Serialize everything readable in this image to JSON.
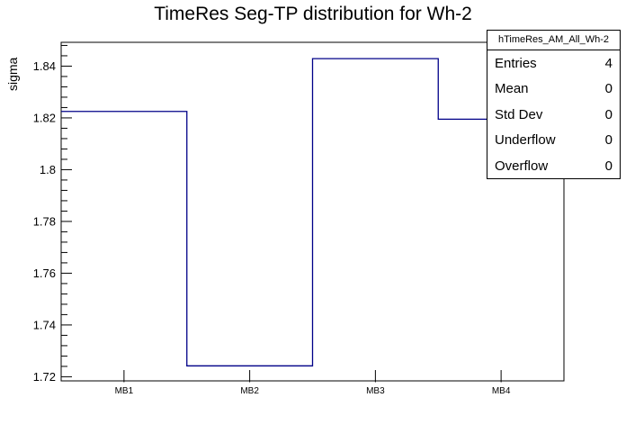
{
  "page_title": "TimeRes Seg-TP distribution for Wh-2",
  "stats_box": {
    "title": "hTimeRes_AM_All_Wh-2",
    "rows": [
      {
        "label": "Entries",
        "value": "4"
      },
      {
        "label": "Mean",
        "value": "0"
      },
      {
        "label": "Std Dev",
        "value": "0"
      },
      {
        "label": "Underflow",
        "value": "0"
      },
      {
        "label": "Overflow",
        "value": "0"
      }
    ]
  },
  "chart_data": {
    "type": "bar",
    "style": "step-histogram",
    "title": "TimeRes Seg-TP distribution for Wh-2",
    "xlabel": "",
    "ylabel": "sigma",
    "categories": [
      "MB1",
      "MB2",
      "MB3",
      "MB4"
    ],
    "values": [
      1.8225,
      1.7242,
      1.8429,
      1.8195
    ],
    "ylim": [
      1.7184,
      1.8492
    ],
    "y_major_ticks": [
      1.72,
      1.74,
      1.76,
      1.78,
      1.8,
      1.82,
      1.84
    ],
    "y_tick_labels": [
      "1.72",
      "1.74",
      "1.76",
      "1.78",
      "1.8",
      "1.82",
      "1.84"
    ],
    "y_minor_step": 0.004,
    "grid": false,
    "legend_position": "top-right-stats-box",
    "line_color": "#000088",
    "axis_color": "#000000",
    "background_color": "#ffffff"
  }
}
